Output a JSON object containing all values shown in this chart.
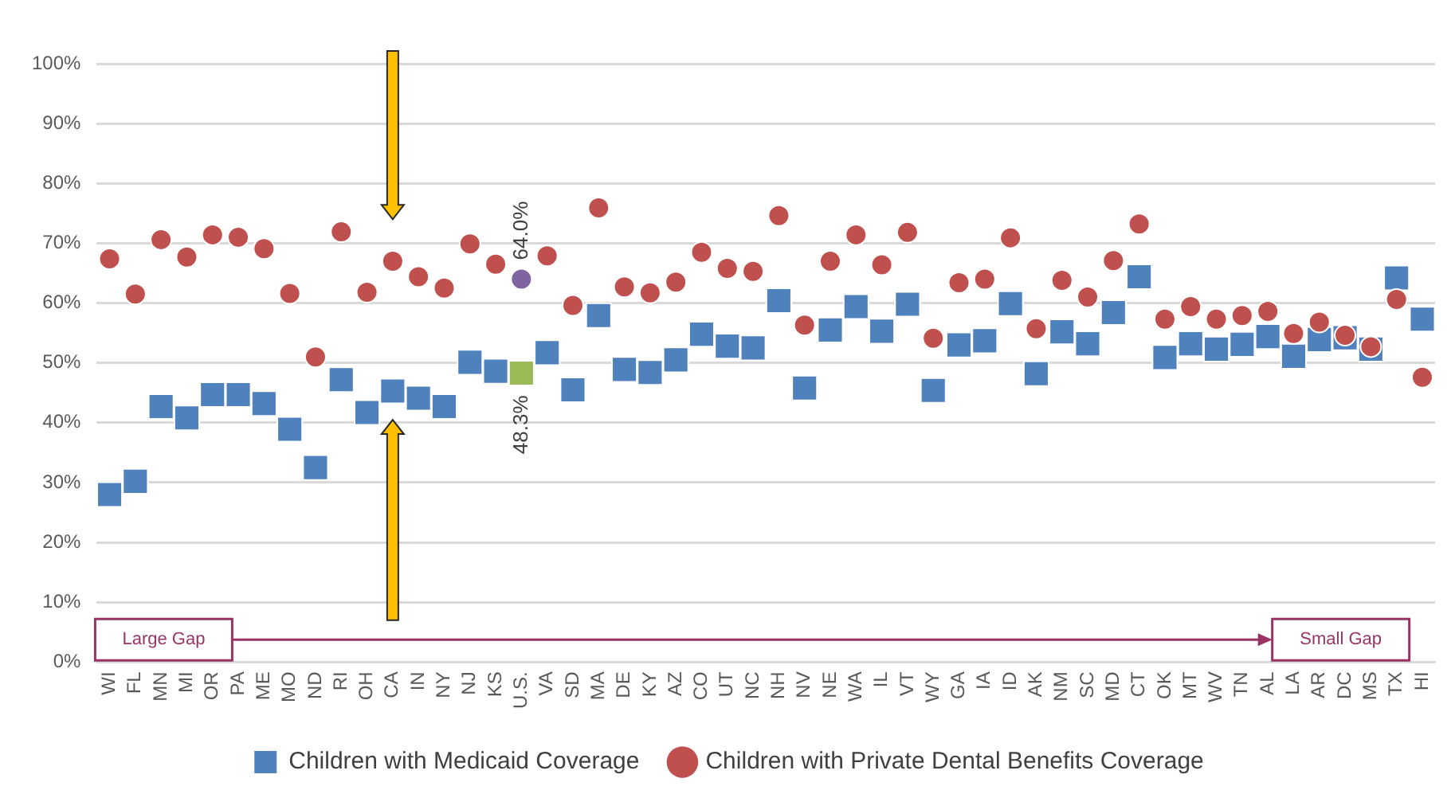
{
  "chart_data": {
    "type": "scatter",
    "categories": [
      "WI",
      "FL",
      "MN",
      "MI",
      "OR",
      "PA",
      "ME",
      "MO",
      "ND",
      "RI",
      "OH",
      "CA",
      "IN",
      "NY",
      "NJ",
      "KS",
      "U.S.",
      "VA",
      "SD",
      "MA",
      "DE",
      "KY",
      "AZ",
      "CO",
      "UT",
      "NC",
      "NH",
      "NV",
      "NE",
      "WA",
      "IL",
      "VT",
      "WY",
      "GA",
      "IA",
      "ID",
      "AK",
      "NM",
      "SC",
      "MD",
      "CT",
      "OK",
      "MT",
      "WV",
      "TN",
      "AL",
      "LA",
      "AR",
      "DC",
      "MS",
      "TX",
      "HI"
    ],
    "series": [
      {
        "name": "Children with Medicaid Coverage",
        "color": "#4f81bd",
        "marker": "square",
        "colors": [
          "#4f81bd",
          "#4f81bd",
          "#4f81bd",
          "#4f81bd",
          "#4f81bd",
          "#4f81bd",
          "#4f81bd",
          "#4f81bd",
          "#4f81bd",
          "#4f81bd",
          "#4f81bd",
          "#4f81bd",
          "#4f81bd",
          "#4f81bd",
          "#4f81bd",
          "#4f81bd",
          "#9bbb59",
          "#4f81bd",
          "#4f81bd",
          "#4f81bd",
          "#4f81bd",
          "#4f81bd",
          "#4f81bd",
          "#4f81bd",
          "#4f81bd",
          "#4f81bd",
          "#4f81bd",
          "#4f81bd",
          "#4f81bd",
          "#4f81bd",
          "#4f81bd",
          "#4f81bd",
          "#4f81bd",
          "#4f81bd",
          "#4f81bd",
          "#4f81bd",
          "#4f81bd",
          "#4f81bd",
          "#4f81bd",
          "#4f81bd",
          "#4f81bd",
          "#4f81bd",
          "#4f81bd",
          "#4f81bd",
          "#4f81bd",
          "#4f81bd",
          "#4f81bd",
          "#4f81bd",
          "#4f81bd",
          "#4f81bd",
          "#4f81bd",
          "#4f81bd"
        ],
        "values": [
          28.0,
          30.2,
          42.7,
          40.8,
          44.7,
          44.7,
          43.2,
          38.9,
          32.5,
          47.2,
          41.7,
          45.3,
          44.1,
          42.7,
          50.1,
          48.6,
          48.3,
          51.7,
          45.5,
          57.9,
          48.9,
          48.4,
          50.5,
          54.8,
          52.8,
          52.5,
          60.4,
          45.8,
          55.5,
          59.4,
          55.3,
          59.8,
          45.4,
          53.0,
          53.7,
          59.9,
          48.2,
          55.2,
          53.2,
          58.4,
          64.4,
          50.9,
          53.2,
          52.3,
          53.1,
          54.4,
          51.1,
          53.9,
          54.2,
          52.3,
          64.2,
          57.3
        ],
        "value_labels": [
          null,
          null,
          null,
          null,
          null,
          null,
          null,
          null,
          null,
          null,
          null,
          null,
          null,
          null,
          null,
          null,
          "48.3%",
          null,
          null,
          null,
          null,
          null,
          null,
          null,
          null,
          null,
          null,
          null,
          null,
          null,
          null,
          null,
          null,
          null,
          null,
          null,
          null,
          null,
          null,
          null,
          null,
          null,
          null,
          null,
          null,
          null,
          null,
          null,
          null,
          null,
          null,
          null
        ]
      },
      {
        "name": "Children with Private Dental Benefits Coverage",
        "color": "#c0504d",
        "marker": "circle",
        "colors": [
          "#c0504d",
          "#c0504d",
          "#c0504d",
          "#c0504d",
          "#c0504d",
          "#c0504d",
          "#c0504d",
          "#c0504d",
          "#c0504d",
          "#c0504d",
          "#c0504d",
          "#c0504d",
          "#c0504d",
          "#c0504d",
          "#c0504d",
          "#c0504d",
          "#8064a2",
          "#c0504d",
          "#c0504d",
          "#c0504d",
          "#c0504d",
          "#c0504d",
          "#c0504d",
          "#c0504d",
          "#c0504d",
          "#c0504d",
          "#c0504d",
          "#c0504d",
          "#c0504d",
          "#c0504d",
          "#c0504d",
          "#c0504d",
          "#c0504d",
          "#c0504d",
          "#c0504d",
          "#c0504d",
          "#c0504d",
          "#c0504d",
          "#c0504d",
          "#c0504d",
          "#c0504d",
          "#c0504d",
          "#c0504d",
          "#c0504d",
          "#c0504d",
          "#c0504d",
          "#c0504d",
          "#c0504d",
          "#c0504d",
          "#c0504d",
          "#c0504d",
          "#c0504d"
        ],
        "values": [
          67.4,
          61.5,
          70.6,
          67.7,
          71.4,
          71.0,
          69.1,
          61.6,
          51.0,
          71.9,
          61.8,
          67.0,
          64.4,
          62.5,
          69.9,
          66.5,
          64.0,
          67.9,
          59.6,
          75.9,
          62.7,
          61.7,
          63.5,
          68.5,
          65.8,
          65.3,
          74.6,
          56.3,
          67.0,
          71.4,
          66.4,
          71.8,
          54.1,
          63.4,
          64.0,
          70.9,
          55.7,
          63.8,
          61.0,
          67.1,
          73.2,
          57.3,
          59.4,
          57.3,
          57.9,
          58.6,
          54.9,
          56.8,
          54.6,
          52.7,
          60.6,
          47.6
        ],
        "value_labels": [
          null,
          null,
          null,
          null,
          null,
          null,
          null,
          null,
          null,
          null,
          null,
          null,
          null,
          null,
          null,
          null,
          "64.0%",
          null,
          null,
          null,
          null,
          null,
          null,
          null,
          null,
          null,
          null,
          null,
          null,
          null,
          null,
          null,
          null,
          null,
          null,
          null,
          null,
          null,
          null,
          null,
          null,
          null,
          null,
          null,
          null,
          null,
          null,
          null,
          null,
          null,
          null,
          null
        ]
      }
    ],
    "ylim": [
      0,
      100
    ],
    "yticks": [
      {
        "value": 0,
        "label": "0%"
      },
      {
        "value": 10,
        "label": "10%"
      },
      {
        "value": 20,
        "label": "20%"
      },
      {
        "value": 30,
        "label": "30%"
      },
      {
        "value": 40,
        "label": "40%"
      },
      {
        "value": 50,
        "label": "50%"
      },
      {
        "value": 60,
        "label": "60%"
      },
      {
        "value": 70,
        "label": "70%"
      },
      {
        "value": 80,
        "label": "80%"
      },
      {
        "value": 90,
        "label": "90%"
      },
      {
        "value": 100,
        "label": "100%"
      }
    ],
    "grid": "y",
    "legend": "bottom",
    "annotations": [
      "Large Gap",
      "Small Gap"
    ]
  }
}
